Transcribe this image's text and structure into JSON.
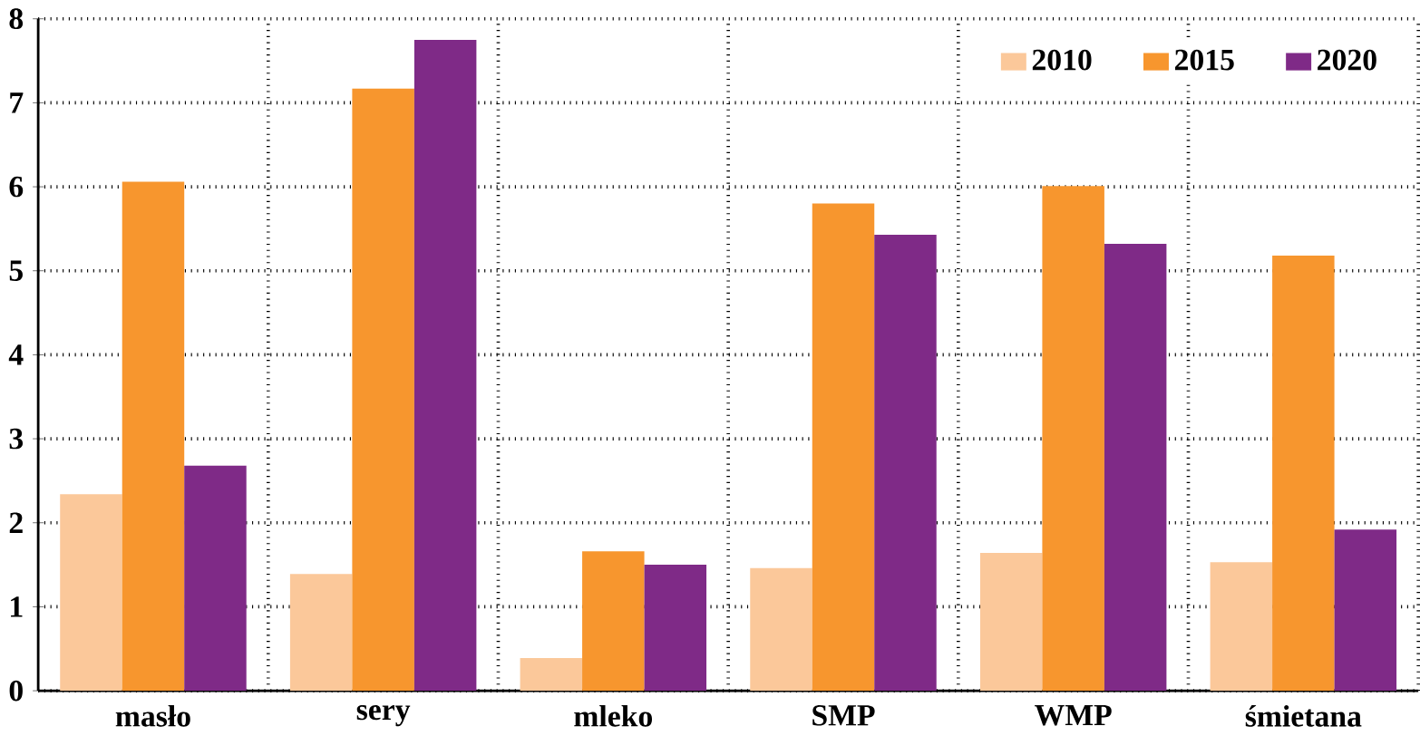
{
  "chart_data": {
    "type": "bar",
    "categories": [
      "masło",
      "sery",
      "mleko",
      "SMP",
      "WMP",
      "śmietana"
    ],
    "series": [
      {
        "name": "2010",
        "color": "#fbc89a",
        "values": [
          2.34,
          1.39,
          0.39,
          1.46,
          1.64,
          1.53
        ]
      },
      {
        "name": "2015",
        "color": "#f7962e",
        "values": [
          6.06,
          7.17,
          1.66,
          5.8,
          6.01,
          5.18
        ]
      },
      {
        "name": "2020",
        "color": "#7f2a87",
        "values": [
          2.68,
          7.75,
          1.5,
          5.43,
          5.32,
          1.92
        ]
      }
    ],
    "ylim": [
      0,
      8
    ],
    "yticks": [
      0,
      1,
      2,
      3,
      4,
      5,
      6,
      7,
      8
    ],
    "grid": true,
    "legend": "top right"
  }
}
